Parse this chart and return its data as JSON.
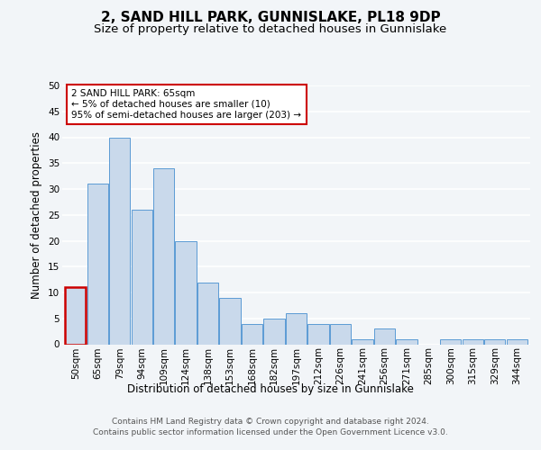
{
  "title": "2, SAND HILL PARK, GUNNISLAKE, PL18 9DP",
  "subtitle": "Size of property relative to detached houses in Gunnislake",
  "xlabel": "Distribution of detached houses by size in Gunnislake",
  "ylabel": "Number of detached properties",
  "categories": [
    "50sqm",
    "65sqm",
    "79sqm",
    "94sqm",
    "109sqm",
    "124sqm",
    "138sqm",
    "153sqm",
    "168sqm",
    "182sqm",
    "197sqm",
    "212sqm",
    "226sqm",
    "241sqm",
    "256sqm",
    "271sqm",
    "285sqm",
    "300sqm",
    "315sqm",
    "329sqm",
    "344sqm"
  ],
  "values": [
    11,
    31,
    40,
    26,
    34,
    20,
    12,
    9,
    4,
    5,
    6,
    4,
    4,
    1,
    3,
    1,
    0,
    1,
    1,
    1,
    1
  ],
  "bar_color": "#c9d9eb",
  "bar_edge_color": "#5b9bd5",
  "highlight_bar_index": 0,
  "highlight_bar_edge_color": "#cc0000",
  "annotation_text": "2 SAND HILL PARK: 65sqm\n← 5% of detached houses are smaller (10)\n95% of semi-detached houses are larger (203) →",
  "annotation_box_color": "#ffffff",
  "annotation_box_edge_color": "#cc0000",
  "ylim": [
    0,
    50
  ],
  "yticks": [
    0,
    5,
    10,
    15,
    20,
    25,
    30,
    35,
    40,
    45,
    50
  ],
  "footer_line1": "Contains HM Land Registry data © Crown copyright and database right 2024.",
  "footer_line2": "Contains public sector information licensed under the Open Government Licence v3.0.",
  "bg_color": "#f2f5f8",
  "plot_bg_color": "#f2f5f8",
  "grid_color": "#ffffff",
  "title_fontsize": 11,
  "subtitle_fontsize": 9.5,
  "axis_label_fontsize": 8.5,
  "tick_fontsize": 7.5,
  "footer_fontsize": 6.5,
  "annotation_fontsize": 7.5
}
